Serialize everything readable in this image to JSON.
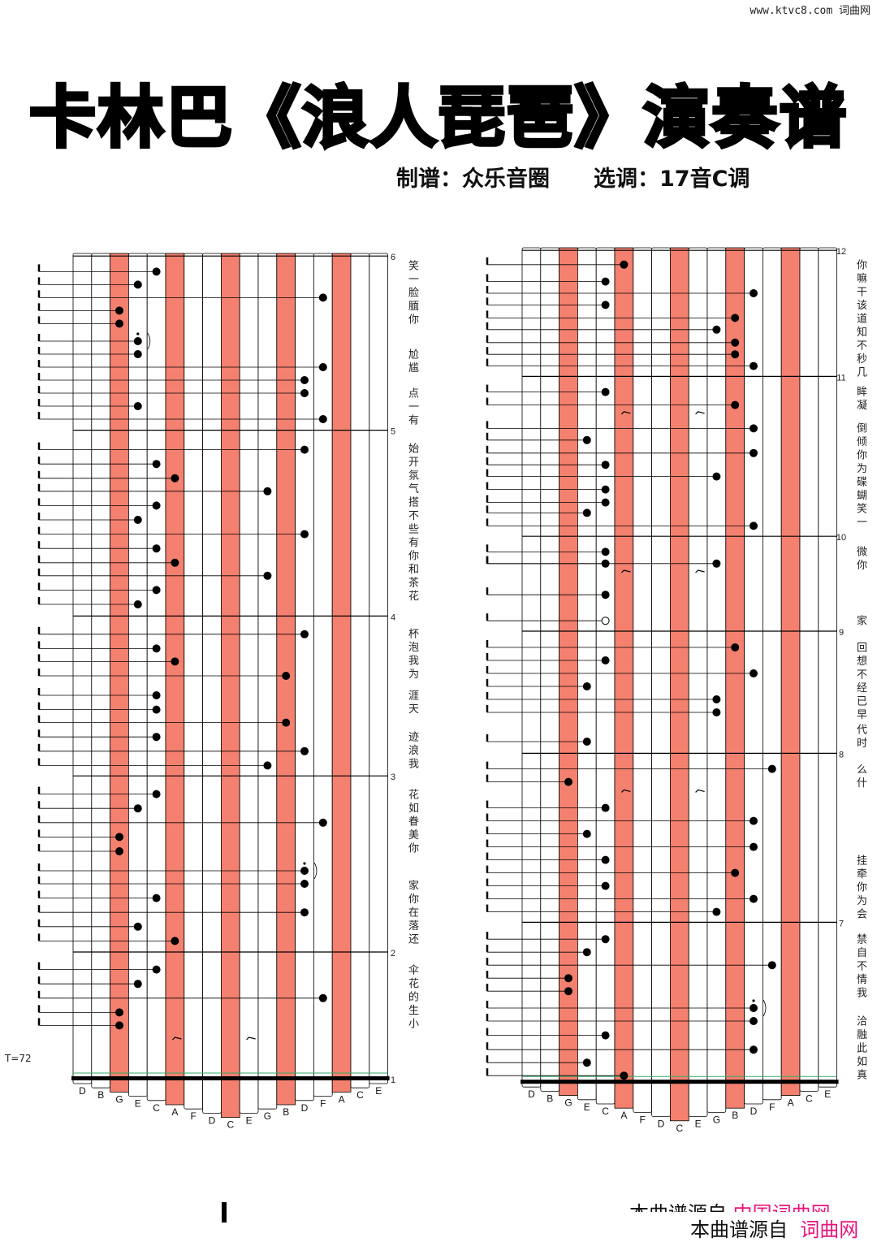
{
  "watermark": "www.ktvc8.com 词曲网",
  "title": "卡林巴《浪人琵琶》演奏谱",
  "subtitle": "制谱：众乐音圈　　选调：17音C调",
  "tempo": "T=72",
  "tines": [
    "D",
    "B",
    "G",
    "E",
    "C",
    "A",
    "F",
    "D",
    "C",
    "E",
    "G",
    "B",
    "D",
    "F",
    "A",
    "C",
    "E"
  ],
  "highlight_tines": [
    2,
    5,
    8,
    11,
    14
  ],
  "colors": {
    "highlight": "#f4806f",
    "line": "#000000",
    "footer_brand": "#e8157a"
  },
  "left_panel": {
    "measures": [
      {
        "n": "6",
        "t": 0.2
      },
      {
        "n": "5",
        "t": 13.6
      },
      {
        "n": "4",
        "t": 27.9
      },
      {
        "n": "3",
        "t": 40.2
      },
      {
        "n": "2",
        "t": 53.75
      },
      {
        "n": "1",
        "t": 63.5
      }
    ],
    "end_t": 63.5,
    "notes": [
      [
        4,
        1.4
      ],
      [
        3,
        2.4
      ],
      [
        13,
        3.4
      ],
      [
        2,
        4.4
      ],
      [
        2,
        5.4
      ],
      [
        3,
        6.75,
        "dot"
      ],
      [
        3,
        7.75
      ],
      [
        13,
        8.75
      ],
      [
        12,
        9.75
      ],
      [
        12,
        10.75
      ],
      [
        3,
        11.75
      ],
      [
        13,
        12.75
      ],
      [
        12,
        15.1
      ],
      [
        4,
        16.2
      ],
      [
        5,
        17.3
      ],
      [
        10,
        18.3
      ],
      [
        4,
        19.4
      ],
      [
        3,
        20.5
      ],
      [
        12,
        21.6
      ],
      [
        4,
        22.7
      ],
      [
        5,
        23.8
      ],
      [
        10,
        24.8
      ],
      [
        4,
        25.9
      ],
      [
        3,
        27
      ],
      [
        12,
        29.3
      ],
      [
        4,
        30.4
      ],
      [
        5,
        31.4
      ],
      [
        11,
        32.5
      ],
      [
        4,
        34
      ],
      [
        4,
        35.1
      ],
      [
        11,
        36.1
      ],
      [
        4,
        37.2
      ],
      [
        12,
        38.3
      ],
      [
        10,
        39.4
      ],
      [
        4,
        41.6
      ],
      [
        3,
        42.7
      ],
      [
        13,
        43.8
      ],
      [
        2,
        44.9
      ],
      [
        2,
        46
      ],
      [
        12,
        47.5,
        "dot"
      ],
      [
        12,
        48.5
      ],
      [
        4,
        49.6
      ],
      [
        12,
        50.7
      ],
      [
        3,
        51.8
      ],
      [
        5,
        52.9
      ],
      [
        4,
        55.1
      ],
      [
        3,
        56.2
      ],
      [
        13,
        57.3
      ],
      [
        2,
        58.4
      ],
      [
        2,
        59.4
      ]
    ],
    "rests": [
      [
        5,
        60.5
      ],
      [
        9,
        60.5
      ]
    ],
    "lyrics": [
      "笑一脸腼你",
      "尬尴",
      "点一有",
      "始开氛气搭不些有你和茶花",
      "杯泡我为",
      "涯天",
      "迹浪我",
      "花如眷美你",
      "家你在落还",
      "伞花的生小"
    ]
  },
  "right_panel": {
    "measures": [
      {
        "n": "12",
        "t": 0.2
      },
      {
        "n": "11",
        "t": 9.9
      },
      {
        "n": "10",
        "t": 22.2
      },
      {
        "n": "9",
        "t": 29.5
      },
      {
        "n": "8",
        "t": 38.9
      },
      {
        "n": "7",
        "t": 51.9
      }
    ],
    "end_t": 64.2,
    "notes": [
      [
        5,
        1.3
      ],
      [
        4,
        2.6
      ],
      [
        12,
        3.5
      ],
      [
        4,
        4.4
      ],
      [
        11,
        5.4
      ],
      [
        10,
        6.3
      ],
      [
        11,
        7.3
      ],
      [
        11,
        8.2
      ],
      [
        12,
        9.1
      ],
      [
        4,
        11.1
      ],
      [
        11,
        12.1
      ],
      [
        12,
        13.9
      ],
      [
        3,
        14.8
      ],
      [
        12,
        15.8
      ],
      [
        4,
        16.7
      ],
      [
        10,
        17.6
      ],
      [
        4,
        18.6
      ],
      [
        4,
        19.6
      ],
      [
        3,
        20.4
      ],
      [
        12,
        21.4
      ],
      [
        4,
        23.4
      ],
      [
        4,
        24.3
      ],
      [
        10,
        24.3
      ],
      [
        4,
        26.7
      ],
      [
        4,
        28.7,
        "hollow"
      ],
      [
        11,
        30.75
      ],
      [
        4,
        31.75
      ],
      [
        12,
        32.75
      ],
      [
        3,
        33.75
      ],
      [
        10,
        34.75
      ],
      [
        10,
        35.75
      ],
      [
        3,
        38
      ],
      [
        13,
        40.1
      ],
      [
        2,
        41.1
      ],
      [
        4,
        43.1
      ],
      [
        12,
        44.1
      ],
      [
        3,
        45.1
      ],
      [
        12,
        46.1
      ],
      [
        4,
        47.1
      ],
      [
        11,
        48.1
      ],
      [
        4,
        49.1
      ],
      [
        12,
        50.1
      ],
      [
        10,
        51.1
      ],
      [
        4,
        53.2
      ],
      [
        3,
        54.2
      ],
      [
        13,
        55.2
      ],
      [
        2,
        56.2
      ],
      [
        2,
        57.2
      ],
      [
        12,
        58.5,
        "dot"
      ],
      [
        12,
        59.5
      ],
      [
        4,
        60.6
      ],
      [
        12,
        61.7
      ],
      [
        3,
        62.7
      ],
      [
        5,
        63.7
      ]
    ],
    "rests": [
      [
        5,
        12.8
      ],
      [
        9,
        12.8
      ],
      [
        5,
        25
      ],
      [
        9,
        25
      ],
      [
        5,
        41.9
      ],
      [
        9,
        41.9
      ]
    ],
    "lyrics": [
      "你嘛干该道知不秒几",
      "眸凝",
      "倒倾你为碟蝴笑一",
      "微你",
      "家",
      "回想不经已早",
      "代时",
      "么什",
      "挂牵你为会",
      "禁自不情我",
      "洽融此如真"
    ]
  },
  "footer": {
    "line1_text": "本曲谱源自 ",
    "line1_brand": "中国词曲网",
    "line2_text": "本曲谱源自  ",
    "line2_brand": "词曲网"
  }
}
